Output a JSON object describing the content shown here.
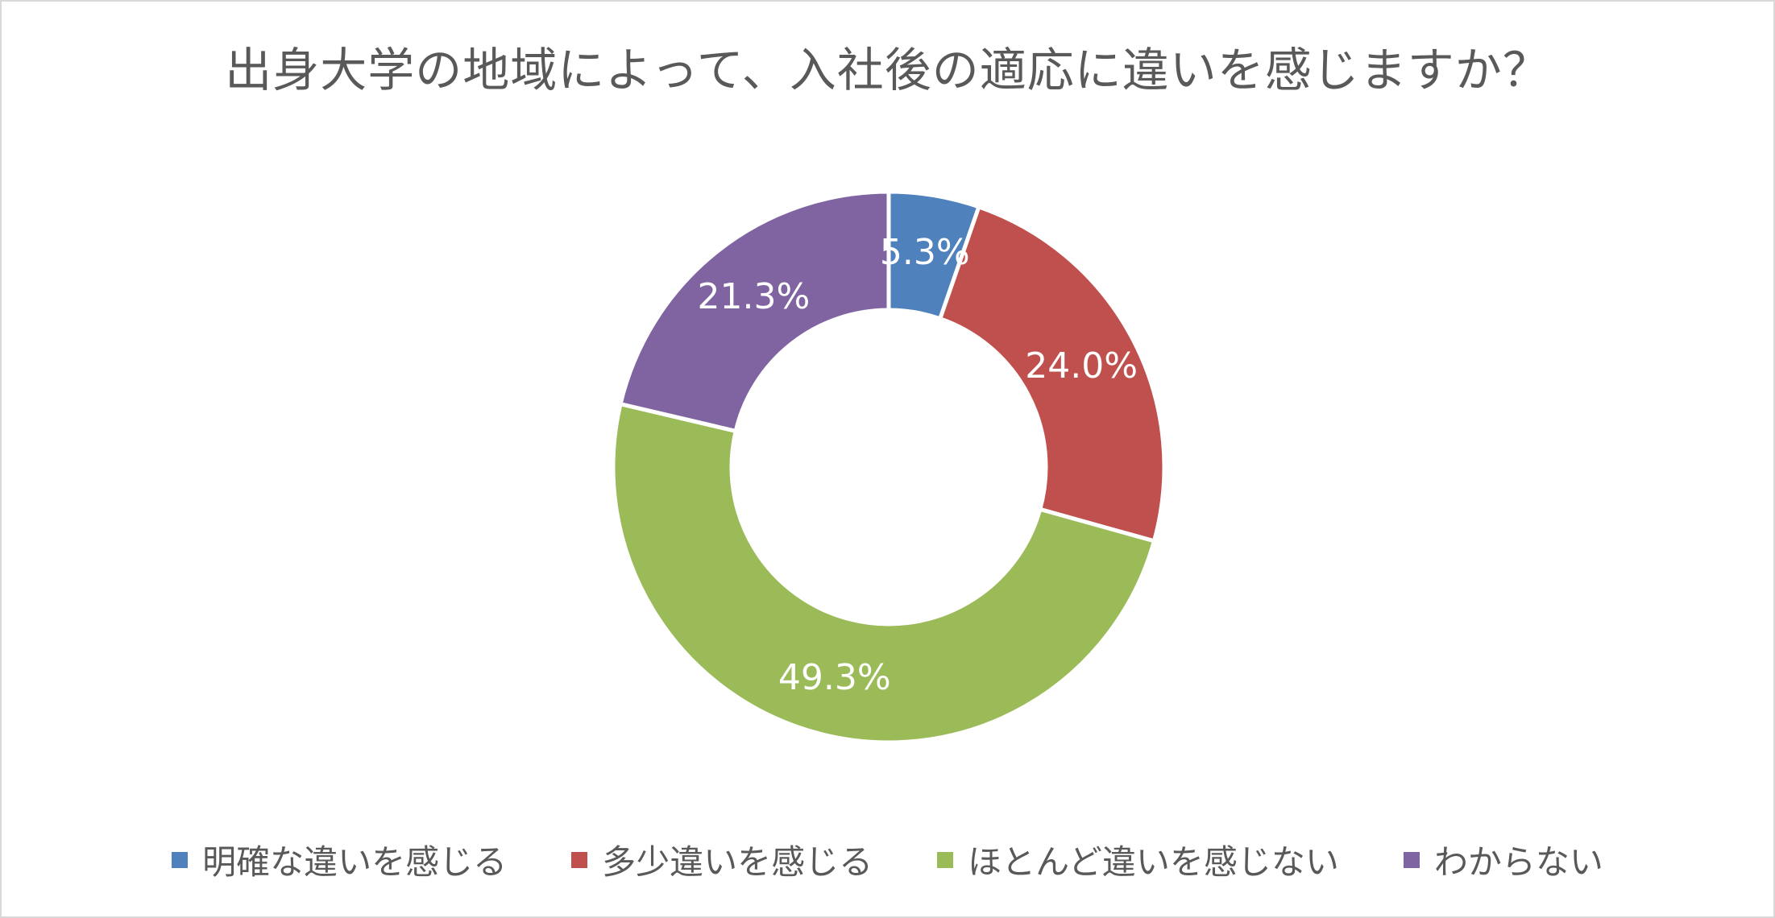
{
  "chart_data": {
    "type": "pie",
    "variant": "donut",
    "title": "出身大学の地域によって、入社後の適応に違いを感じますか？",
    "slices": [
      {
        "label": "明確な違いを感じる",
        "value": 5.3,
        "display": "5.3%",
        "color": "#4f81bd"
      },
      {
        "label": "多少違いを感じる",
        "value": 24.0,
        "display": "24.0%",
        "color": "#c0504d"
      },
      {
        "label": "ほとんど違いを感じない",
        "value": 49.3,
        "display": "49.3%",
        "color": "#9bbb59"
      },
      {
        "label": "わからない",
        "value": 21.3,
        "display": "21.3%",
        "color": "#8064a2"
      }
    ],
    "legend_position": "bottom",
    "start_angle": "top, clockwise"
  }
}
